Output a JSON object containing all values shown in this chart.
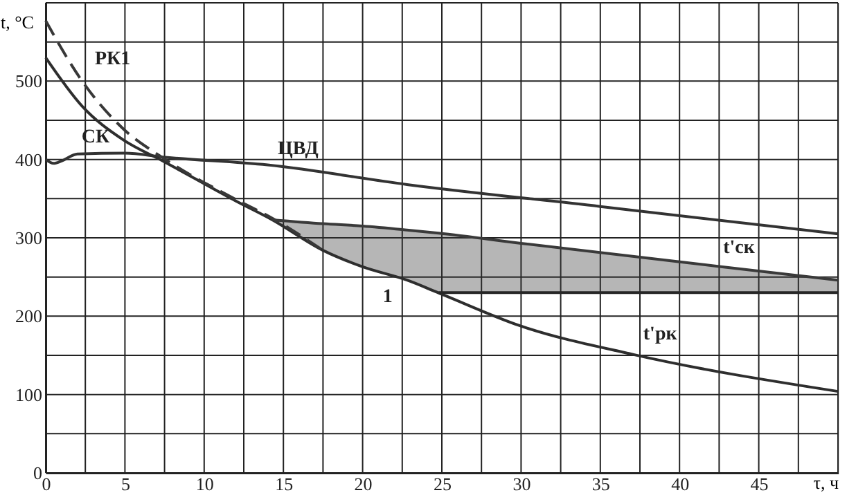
{
  "chart_data": {
    "type": "line",
    "xlabel": "τ, ч",
    "ylabel": "t, °C",
    "xlim": [
      0,
      50
    ],
    "ylim": [
      0,
      600
    ],
    "xticks": [
      0,
      {
        "value": 2.5,
        "label": null
      },
      5,
      {
        "value": 7.5,
        "label": null
      },
      10,
      {
        "value": 12.5,
        "label": null
      },
      15,
      {
        "value": 17.5,
        "label": null
      },
      20,
      {
        "value": 22.5,
        "label": null
      },
      25,
      {
        "value": 27.5,
        "label": null
      },
      30,
      {
        "value": 32.5,
        "label": null
      },
      35,
      {
        "value": 37.5,
        "label": null
      },
      40,
      {
        "value": 42.5,
        "label": null
      },
      45,
      {
        "value": 47.5,
        "label": null
      },
      {
        "value": 50,
        "label": null
      }
    ],
    "yticks": [
      0,
      {
        "value": 50,
        "label": null
      },
      100,
      {
        "value": 150,
        "label": null
      },
      200,
      {
        "value": 250,
        "label": null
      },
      300,
      {
        "value": 350,
        "label": null
      },
      400,
      {
        "value": 450,
        "label": null
      },
      500,
      {
        "value": 550,
        "label": null
      },
      {
        "value": 600,
        "label": null
      }
    ],
    "grid": true,
    "series": [
      {
        "color": "#333333",
        "line_style": "solid",
        "x": [
          0,
          0.5,
          1,
          2,
          5,
          7.4,
          14,
          22.8,
          35,
          50
        ],
        "values": [
          400,
          395,
          398,
          407,
          408,
          403,
          393,
          368,
          340,
          305
        ]
      },
      {
        "color": "#2e2e2e",
        "line_style": "solid",
        "x": [
          0,
          2.3,
          4.9,
          7.4,
          12,
          14.3,
          17.5,
          20,
          22.8,
          25,
          29.9,
          37.1,
          50
        ],
        "values": [
          530,
          468,
          425,
          398,
          347,
          323,
          284,
          263,
          246,
          228,
          188,
          151,
          104
        ]
      },
      {
        "color": "#383838",
        "line_style": "dashed",
        "x": [
          0,
          2.3,
          4.9,
          7.4,
          12,
          14.3,
          17.5
        ],
        "values": [
          577,
          500,
          439,
          402,
          349,
          325,
          284
        ]
      },
      {
        "color": "#3a3a3a",
        "line_style": "solid",
        "x": [
          14.3,
          17.5,
          20,
          22.8,
          24.8,
          30,
          42.7,
          50
        ],
        "values": [
          323,
          318,
          315,
          310,
          306,
          293,
          263,
          246
        ],
        "lower": [
          323,
          284,
          263,
          246,
          230,
          230,
          230,
          230
        ],
        "upper": [
          323,
          318,
          315,
          310,
          306,
          293,
          263,
          246
        ]
      },
      {
        "color": "#262626",
        "line_style": "solid",
        "x": [
          24.8,
          50
        ],
        "values": [
          230,
          230
        ]
      }
    ],
    "annotations": [
      {
        "text": "РК1",
        "x": 2.3,
        "y": 500
      },
      {
        "text": "СК",
        "x": 4.9,
        "y": 425
      },
      {
        "text": "ЦВД",
        "x": 14,
        "y": 393
      },
      {
        "text": "1",
        "x": 22.8,
        "y": 246
      },
      {
        "text": "t'ск",
        "x": 42.7,
        "y": 263
      },
      {
        "text": "t'рк",
        "x": 40,
        "y": 230
      }
    ]
  }
}
